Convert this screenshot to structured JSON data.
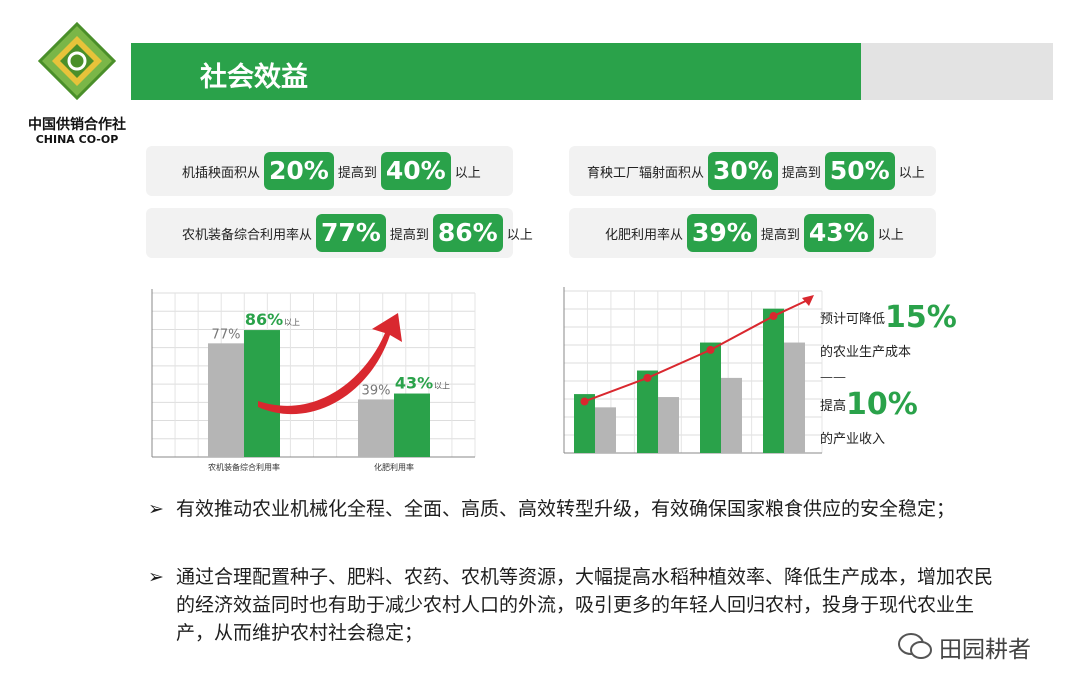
{
  "logo": {
    "name_cn": "中国供销合作社",
    "name_en": "CHINA CO-OP"
  },
  "header": {
    "title": "社会效益"
  },
  "stats": [
    {
      "lead": "机插秧面积从",
      "from": "20%",
      "mid": "提高到",
      "to": "40%",
      "tail": "以上"
    },
    {
      "lead": "农机装备综合利用率从",
      "from": "77%",
      "mid": "提高到",
      "to": "86%",
      "tail": "以上"
    },
    {
      "lead": "育秧工厂辐射面积从",
      "from": "30%",
      "mid": "提高到",
      "to": "50%",
      "tail": "以上"
    },
    {
      "lead": "化肥利用率从",
      "from": "39%",
      "mid": "提高到",
      "to": "43%",
      "tail": "以上"
    }
  ],
  "chart_data": [
    {
      "type": "bar",
      "categories": [
        "农机装备综合利用率",
        "化肥利用率"
      ],
      "series": [
        {
          "values": [
            77,
            39
          ],
          "labels": [
            "77%",
            "39%"
          ],
          "color": "#b5b5b5"
        },
        {
          "values": [
            86,
            43
          ],
          "labels": [
            "86%",
            "43%"
          ],
          "color": "#2aa24a"
        }
      ],
      "green_suffix": "以上",
      "grid": true
    },
    {
      "type": "bar",
      "series": [
        {
          "values": [
            40,
            56,
            75,
            98
          ],
          "color": "#2aa24a"
        },
        {
          "values": [
            31,
            38,
            51,
            75
          ],
          "color": "#b5b5b5"
        }
      ],
      "trend_line": {
        "values": [
          35,
          51,
          70,
          93
        ],
        "color": "#d9282f"
      },
      "grid": true
    }
  ],
  "side_text": {
    "line1_prefix": "预计可降低",
    "line1_value": "15%",
    "line2": "的农业生产成本",
    "divider": "——",
    "line3_prefix": "提高",
    "line3_value": "10%",
    "line4": "的产业收入"
  },
  "bullets": [
    {
      "mark": "➢",
      "text": "有效推动农业机械化全程、全面、高质、高效转型升级，有效确保国家粮食供应的安全稳定；"
    },
    {
      "mark": "➢",
      "text": "通过合理配置种子、肥料、农药、农机等资源，大幅提高水稻种植效率、降低生产成本，增加农民的经济效益同时也有助于减少农村人口的外流，吸引更多的年轻人回归农村，投身于现代农业生产，从而维护农村社会稳定；"
    }
  ],
  "watermark": {
    "text": "田园耕者"
  },
  "colors": {
    "green": "#2aa24a",
    "gray": "#b5b5b5",
    "red": "#d9282f"
  }
}
